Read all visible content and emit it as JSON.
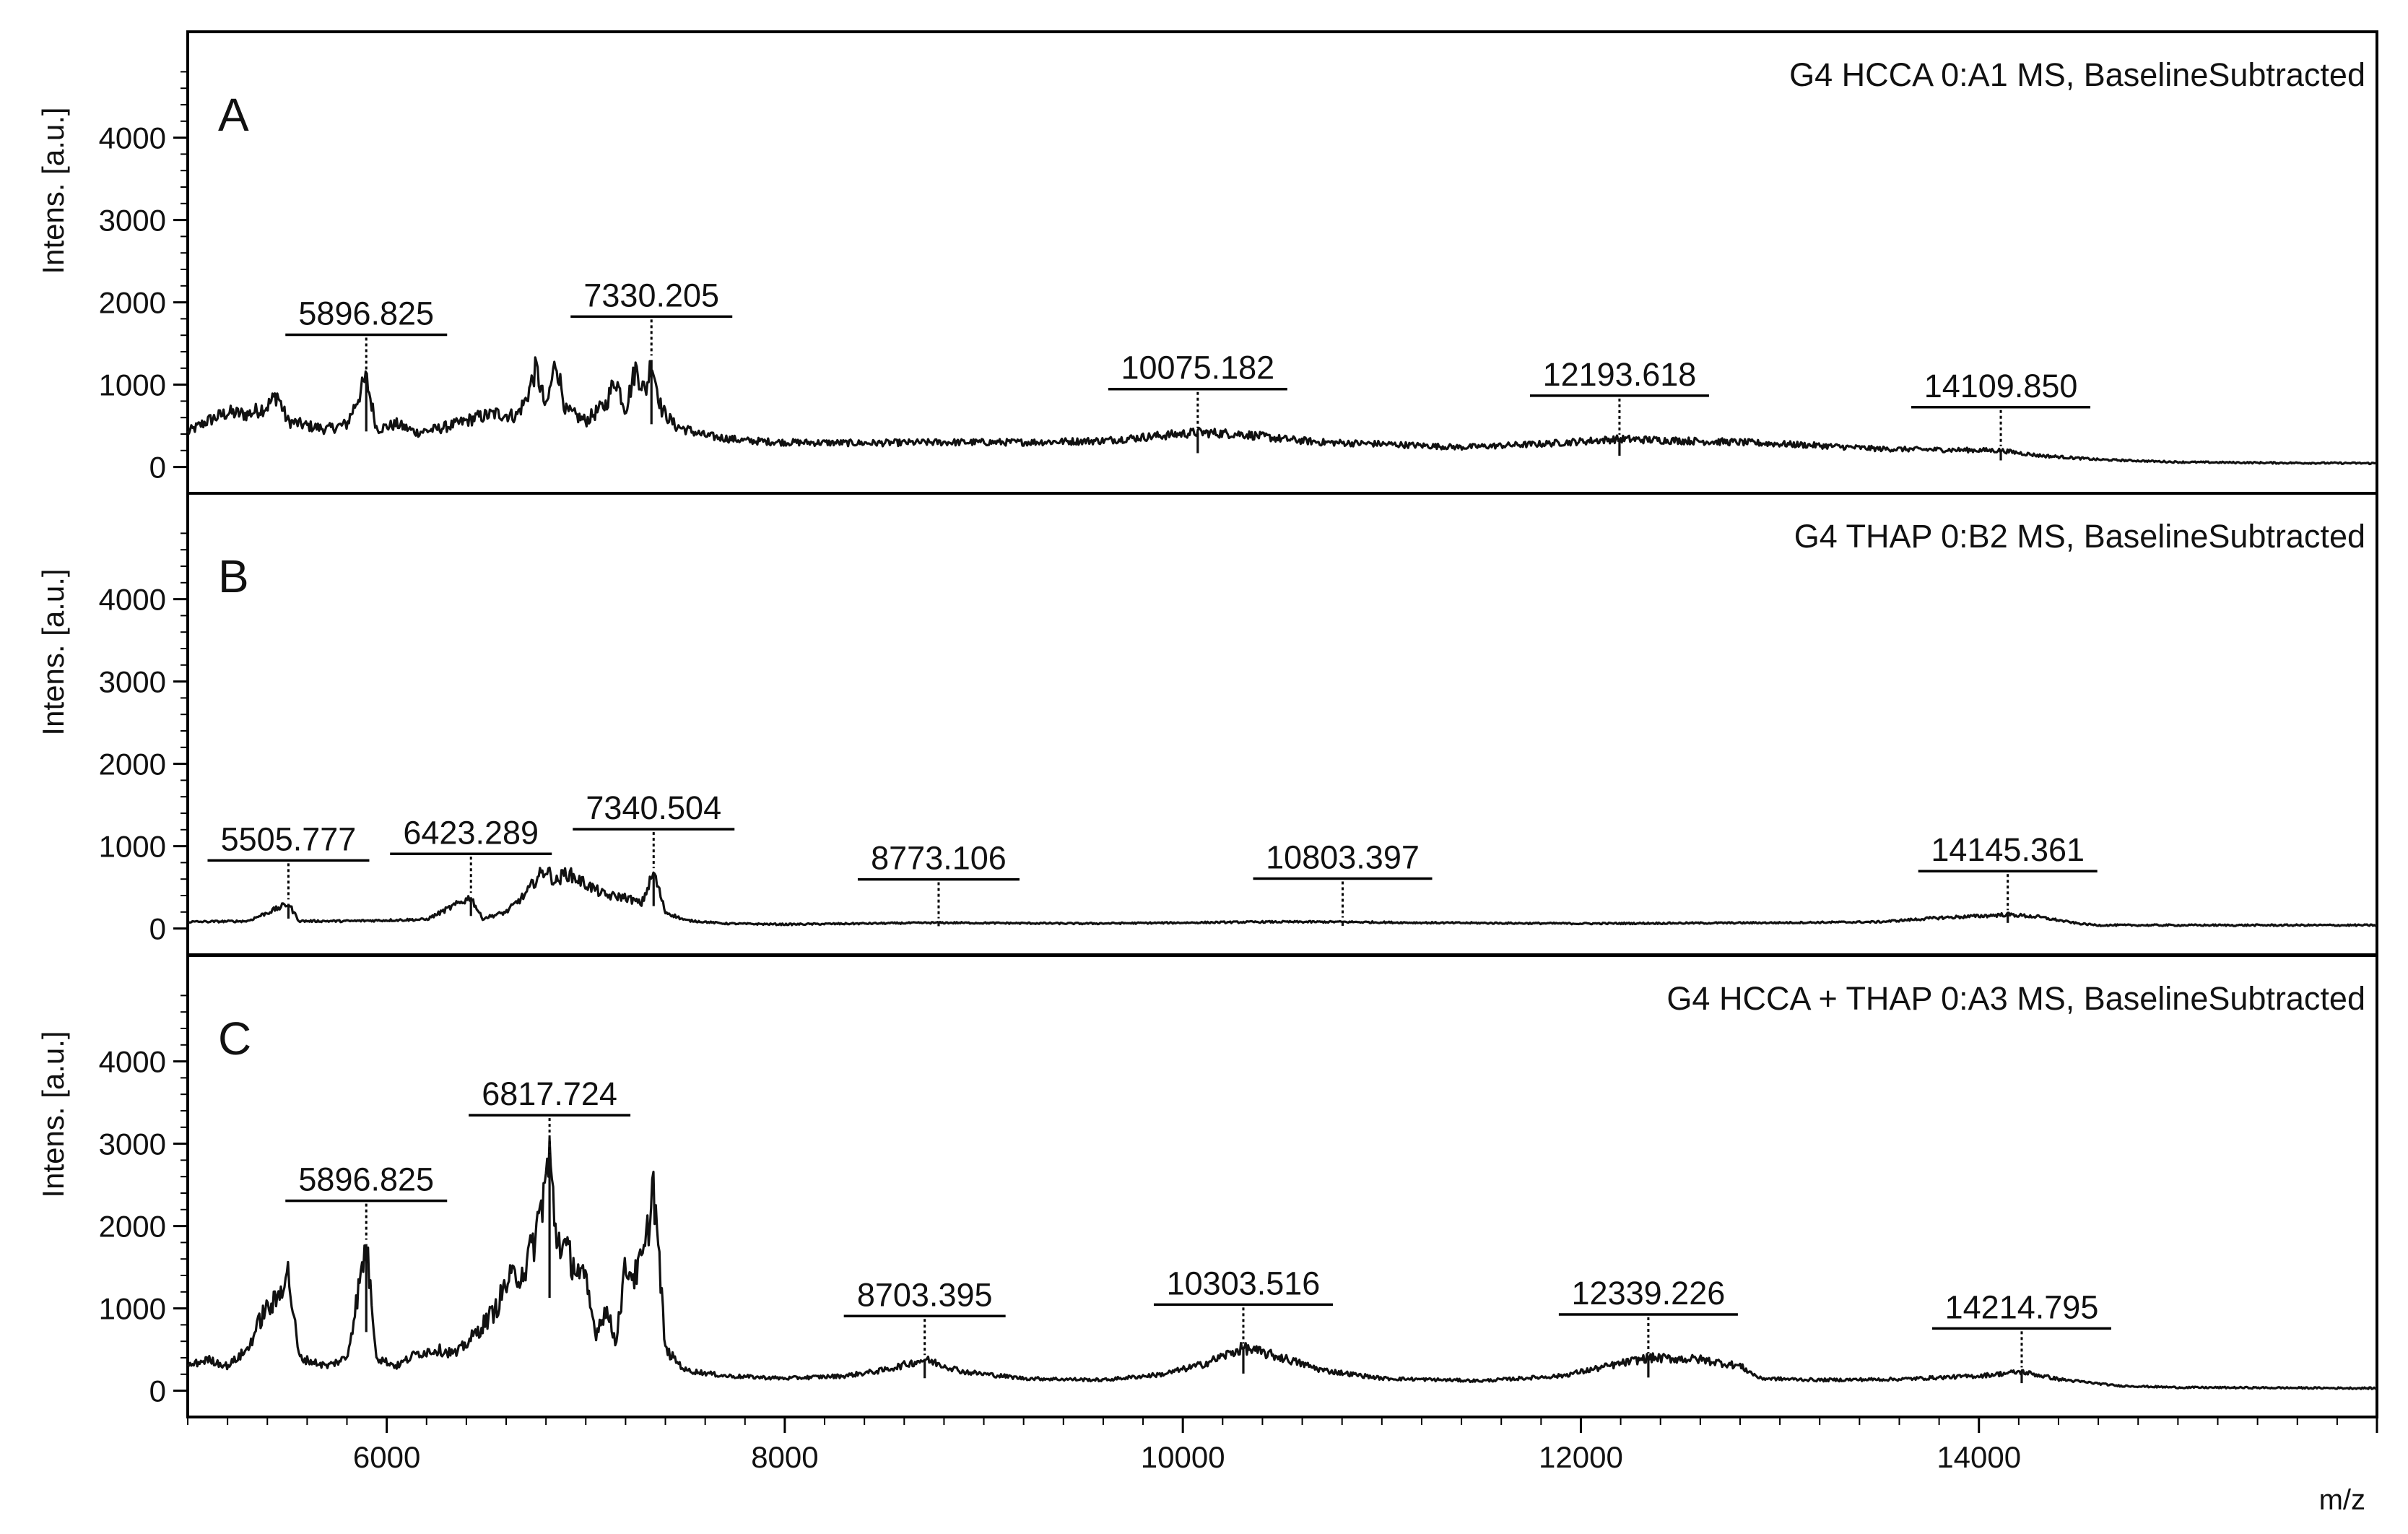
{
  "chart_data": {
    "type": "line",
    "xlabel": "m/z",
    "xlim": [
      5000,
      16000
    ],
    "x_ticks": [
      "6000",
      "8000",
      "10000",
      "12000",
      "14000"
    ],
    "panels": [
      {
        "letter": "A",
        "title": "G4 HCCA 0:A1 MS, BaselineSubtracted",
        "ylabel": "Intens. [a.u.]",
        "ylim": [
          -100,
          4900
        ],
        "y_ticks": [
          "0",
          "1000",
          "2000",
          "3000",
          "4000"
        ],
        "peaks": [
          {
            "label": "5896.825",
            "x": 5897,
            "y": 1080
          },
          {
            "label": "7330.205",
            "x": 7330,
            "y": 1300
          },
          {
            "label": "10075.182",
            "x": 10075,
            "y": 420
          },
          {
            "label": "12193.618",
            "x": 12194,
            "y": 340
          },
          {
            "label": "14109.850",
            "x": 14110,
            "y": 200
          }
        ],
        "spectrum": [
          [
            5000,
            420
          ],
          [
            5100,
            560
          ],
          [
            5200,
            660
          ],
          [
            5300,
            640
          ],
          [
            5400,
            740
          ],
          [
            5450,
            880
          ],
          [
            5500,
            560
          ],
          [
            5600,
            500
          ],
          [
            5700,
            460
          ],
          [
            5800,
            520
          ],
          [
            5897,
            1080
          ],
          [
            5950,
            460
          ],
          [
            6050,
            520
          ],
          [
            6150,
            420
          ],
          [
            6250,
            460
          ],
          [
            6350,
            520
          ],
          [
            6450,
            600
          ],
          [
            6550,
            650
          ],
          [
            6650,
            620
          ],
          [
            6700,
            820
          ],
          [
            6750,
            1200
          ],
          [
            6800,
            700
          ],
          [
            6850,
            1300
          ],
          [
            6900,
            680
          ],
          [
            7000,
            560
          ],
          [
            7100,
            760
          ],
          [
            7150,
            1080
          ],
          [
            7200,
            700
          ],
          [
            7250,
            1200
          ],
          [
            7300,
            900
          ],
          [
            7330,
            1300
          ],
          [
            7380,
            700
          ],
          [
            7450,
            500
          ],
          [
            7600,
            380
          ],
          [
            7800,
            320
          ],
          [
            8000,
            300
          ],
          [
            8400,
            290
          ],
          [
            8800,
            300
          ],
          [
            9200,
            300
          ],
          [
            9600,
            320
          ],
          [
            10075,
            420
          ],
          [
            10300,
            400
          ],
          [
            10500,
            340
          ],
          [
            10700,
            300
          ],
          [
            11000,
            280
          ],
          [
            11400,
            240
          ],
          [
            11800,
            280
          ],
          [
            12194,
            340
          ],
          [
            12500,
            320
          ],
          [
            12800,
            300
          ],
          [
            13200,
            260
          ],
          [
            13500,
            220
          ],
          [
            13800,
            210
          ],
          [
            14110,
            200
          ],
          [
            14300,
            140
          ],
          [
            14600,
            90
          ],
          [
            15000,
            60
          ],
          [
            15500,
            50
          ],
          [
            16000,
            45
          ]
        ]
      },
      {
        "letter": "B",
        "title": "G4 THAP 0:B2 MS, BaselineSubtracted",
        "ylabel": "Intens. [a.u.]",
        "ylim": [
          -100,
          4900
        ],
        "y_ticks": [
          "0",
          "1000",
          "2000",
          "3000",
          "4000"
        ],
        "peaks": [
          {
            "label": "5505.777",
            "x": 5506,
            "y": 300
          },
          {
            "label": "6423.289",
            "x": 6423,
            "y": 380
          },
          {
            "label": "7340.504",
            "x": 7341,
            "y": 680
          },
          {
            "label": "8773.106",
            "x": 8773,
            "y": 70
          },
          {
            "label": "10803.397",
            "x": 10803,
            "y": 80
          },
          {
            "label": "14145.361",
            "x": 14145,
            "y": 170
          }
        ],
        "spectrum": [
          [
            5000,
            80
          ],
          [
            5300,
            90
          ],
          [
            5506,
            300
          ],
          [
            5560,
            90
          ],
          [
            5800,
            90
          ],
          [
            6000,
            100
          ],
          [
            6200,
            110
          ],
          [
            6423,
            380
          ],
          [
            6480,
            120
          ],
          [
            6600,
            200
          ],
          [
            6700,
            420
          ],
          [
            6750,
            600
          ],
          [
            6800,
            720
          ],
          [
            6850,
            560
          ],
          [
            6900,
            680
          ],
          [
            7000,
            540
          ],
          [
            7100,
            400
          ],
          [
            7200,
            380
          ],
          [
            7280,
            300
          ],
          [
            7341,
            680
          ],
          [
            7400,
            200
          ],
          [
            7500,
            100
          ],
          [
            7700,
            60
          ],
          [
            8000,
            50
          ],
          [
            8773,
            70
          ],
          [
            9500,
            60
          ],
          [
            10000,
            70
          ],
          [
            10400,
            80
          ],
          [
            10803,
            80
          ],
          [
            11200,
            70
          ],
          [
            12000,
            60
          ],
          [
            13000,
            70
          ],
          [
            13500,
            80
          ],
          [
            13800,
            130
          ],
          [
            14000,
            150
          ],
          [
            14145,
            170
          ],
          [
            14300,
            140
          ],
          [
            14500,
            60
          ],
          [
            14600,
            40
          ],
          [
            16000,
            40
          ]
        ]
      },
      {
        "letter": "C",
        "title": "G4 HCCA + THAP 0:A3 MS, BaselineSubtracted",
        "ylabel": "Intens. [a.u.]",
        "ylim": [
          -100,
          4900
        ],
        "y_ticks": [
          "0",
          "1000",
          "2000",
          "3000",
          "4000"
        ],
        "peaks": [
          {
            "label": "5896.825",
            "x": 5897,
            "y": 1780
          },
          {
            "label": "6817.724",
            "x": 6818,
            "y": 2820
          },
          {
            "label": "8703.395",
            "x": 8703,
            "y": 380
          },
          {
            "label": "10303.516",
            "x": 10304,
            "y": 520
          },
          {
            "label": "12339.226",
            "x": 12339,
            "y": 400
          },
          {
            "label": "14214.795",
            "x": 14215,
            "y": 230
          }
        ],
        "spectrum": [
          [
            5000,
            300
          ],
          [
            5100,
            380
          ],
          [
            5200,
            300
          ],
          [
            5300,
            500
          ],
          [
            5380,
            950
          ],
          [
            5450,
            1100
          ],
          [
            5500,
            1500
          ],
          [
            5560,
            400
          ],
          [
            5700,
            300
          ],
          [
            5800,
            400
          ],
          [
            5897,
            1780
          ],
          [
            5950,
            400
          ],
          [
            6050,
            300
          ],
          [
            6150,
            450
          ],
          [
            6250,
            500
          ],
          [
            6350,
            450
          ],
          [
            6450,
            700
          ],
          [
            6550,
            1000
          ],
          [
            6600,
            1300
          ],
          [
            6700,
            1500
          ],
          [
            6750,
            1900
          ],
          [
            6818,
            2820
          ],
          [
            6850,
            1900
          ],
          [
            6950,
            1500
          ],
          [
            7000,
            1300
          ],
          [
            7050,
            700
          ],
          [
            7100,
            1000
          ],
          [
            7150,
            600
          ],
          [
            7200,
            1500
          ],
          [
            7250,
            1400
          ],
          [
            7300,
            1700
          ],
          [
            7340,
            2550
          ],
          [
            7400,
            500
          ],
          [
            7500,
            250
          ],
          [
            7700,
            180
          ],
          [
            8000,
            150
          ],
          [
            8300,
            180
          ],
          [
            8500,
            250
          ],
          [
            8703,
            380
          ],
          [
            8900,
            230
          ],
          [
            9200,
            150
          ],
          [
            9600,
            130
          ],
          [
            9900,
            200
          ],
          [
            10100,
            320
          ],
          [
            10304,
            520
          ],
          [
            10500,
            400
          ],
          [
            10700,
            250
          ],
          [
            11000,
            150
          ],
          [
            11500,
            120
          ],
          [
            11900,
            180
          ],
          [
            12100,
            280
          ],
          [
            12339,
            400
          ],
          [
            12600,
            380
          ],
          [
            12800,
            300
          ],
          [
            12900,
            150
          ],
          [
            13200,
            130
          ],
          [
            13600,
            140
          ],
          [
            14000,
            180
          ],
          [
            14215,
            230
          ],
          [
            14400,
            140
          ],
          [
            14700,
            60
          ],
          [
            15000,
            40
          ],
          [
            16000,
            30
          ]
        ]
      }
    ]
  }
}
